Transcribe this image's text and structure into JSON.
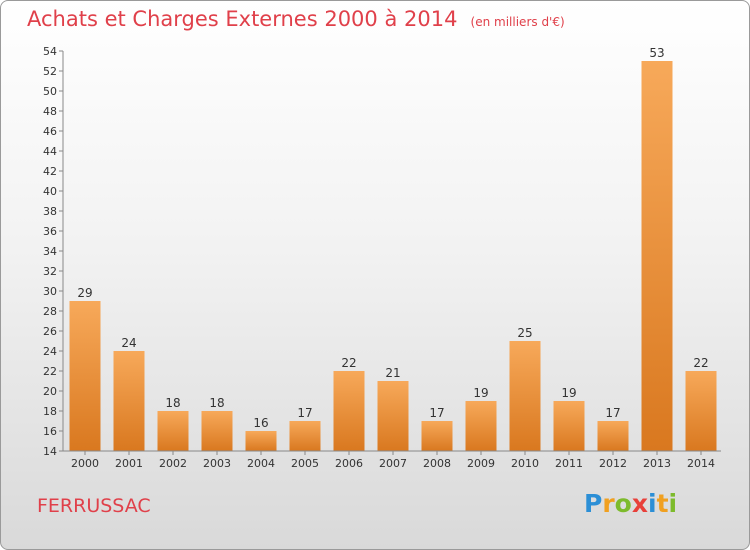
{
  "title": "Achats et Charges Externes 2000 à 2014",
  "subtitle": "(en milliers d'€)",
  "commune": "FERRUSSAC",
  "logo": {
    "letters": [
      "P",
      "r",
      "o",
      "x",
      "i",
      "t",
      "i"
    ],
    "colors": [
      "#2c8fd6",
      "#f0a020",
      "#7dbb2c",
      "#e8403a",
      "#2c8fd6",
      "#f0a020",
      "#7dbb2c"
    ]
  },
  "colors": {
    "bar_top": "#f7a95a",
    "bar_bottom": "#d9781f",
    "axis": "#888888",
    "text": "#333333",
    "title": "#e0404a"
  },
  "chart_data": {
    "type": "bar",
    "title": "Achats et Charges Externes 2000 à 2014",
    "subtitle": "(en milliers d'€)",
    "categories": [
      "2000",
      "2001",
      "2002",
      "2003",
      "2004",
      "2005",
      "2006",
      "2007",
      "2008",
      "2009",
      "2010",
      "2011",
      "2012",
      "2013",
      "2014"
    ],
    "values": [
      29,
      24,
      18,
      18,
      16,
      17,
      22,
      21,
      17,
      19,
      25,
      19,
      17,
      53,
      22
    ],
    "ylim": [
      14,
      54
    ],
    "yticks": [
      14,
      16,
      18,
      20,
      22,
      24,
      26,
      28,
      30,
      32,
      34,
      36,
      38,
      40,
      42,
      44,
      46,
      48,
      50,
      52,
      54
    ],
    "grid": false,
    "data_labels": true
  }
}
